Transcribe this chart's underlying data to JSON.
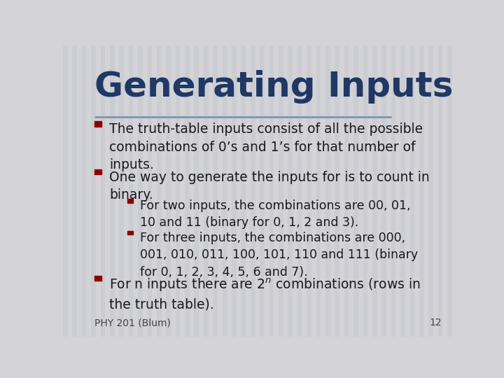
{
  "title": "Generating Inputs",
  "title_color": "#1F3864",
  "title_fontsize": 36,
  "bg_color": "#D3D3D8",
  "stripe_color": "#C8C8D0",
  "divider_color": "#8899AA",
  "bullet_color": "#8B0000",
  "text_color": "#1a1a1a",
  "footer_text": "PHY 201 (Blum)",
  "footer_number": "12",
  "bullet1": "The truth-table inputs consist of all the possible\ncombinations of 0’s and 1’s for that number of\ninputs.",
  "bullet2": "One way to generate the inputs for is to count in\nbinary.",
  "sub_bullet1": "For two inputs, the combinations are 00, 01,\n10 and 11 (binary for 0, 1, 2 and 3).",
  "sub_bullet2": "For three inputs, the combinations are 000,\n001, 010, 011, 100, 101, 110 and 111 (binary\nfor 0, 1, 2, 3, 4, 5, 6 and 7).",
  "bullet3": "For n inputs there are $2^n$ combinations (rows in\nthe truth table).",
  "fs_main": 13.5,
  "fs_sub": 12.5,
  "fs_footer": 10
}
